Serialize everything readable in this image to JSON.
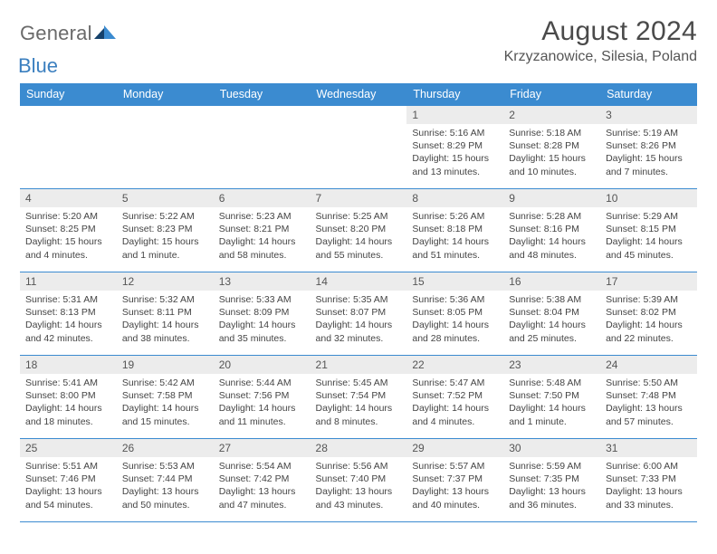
{
  "brand": {
    "general": "General",
    "blue": "Blue"
  },
  "title": "August 2024",
  "location": "Krzyzanowice, Silesia, Poland",
  "colors": {
    "header_bg": "#3b8bd0",
    "header_text": "#ffffff",
    "rule": "#3b8bd0",
    "daynum_bg": "#ececec",
    "daynum_text": "#555555",
    "body_text": "#444444",
    "logo_gray": "#6a6a6a",
    "logo_blue": "#3b7fbf",
    "triangle1": "#15416b",
    "triangle2": "#3b8bd0"
  },
  "typography": {
    "title_fontsize": 30,
    "location_fontsize": 16,
    "header_fontsize": 12.5,
    "daynum_fontsize": 12,
    "details_fontsize": 10.5
  },
  "day_labels": [
    "Sunday",
    "Monday",
    "Tuesday",
    "Wednesday",
    "Thursday",
    "Friday",
    "Saturday"
  ],
  "weeks": [
    [
      null,
      null,
      null,
      null,
      {
        "n": "1",
        "sr": "5:16 AM",
        "ss": "8:29 PM",
        "dl": "15 hours and 13 minutes."
      },
      {
        "n": "2",
        "sr": "5:18 AM",
        "ss": "8:28 PM",
        "dl": "15 hours and 10 minutes."
      },
      {
        "n": "3",
        "sr": "5:19 AM",
        "ss": "8:26 PM",
        "dl": "15 hours and 7 minutes."
      }
    ],
    [
      {
        "n": "4",
        "sr": "5:20 AM",
        "ss": "8:25 PM",
        "dl": "15 hours and 4 minutes."
      },
      {
        "n": "5",
        "sr": "5:22 AM",
        "ss": "8:23 PM",
        "dl": "15 hours and 1 minute."
      },
      {
        "n": "6",
        "sr": "5:23 AM",
        "ss": "8:21 PM",
        "dl": "14 hours and 58 minutes."
      },
      {
        "n": "7",
        "sr": "5:25 AM",
        "ss": "8:20 PM",
        "dl": "14 hours and 55 minutes."
      },
      {
        "n": "8",
        "sr": "5:26 AM",
        "ss": "8:18 PM",
        "dl": "14 hours and 51 minutes."
      },
      {
        "n": "9",
        "sr": "5:28 AM",
        "ss": "8:16 PM",
        "dl": "14 hours and 48 minutes."
      },
      {
        "n": "10",
        "sr": "5:29 AM",
        "ss": "8:15 PM",
        "dl": "14 hours and 45 minutes."
      }
    ],
    [
      {
        "n": "11",
        "sr": "5:31 AM",
        "ss": "8:13 PM",
        "dl": "14 hours and 42 minutes."
      },
      {
        "n": "12",
        "sr": "5:32 AM",
        "ss": "8:11 PM",
        "dl": "14 hours and 38 minutes."
      },
      {
        "n": "13",
        "sr": "5:33 AM",
        "ss": "8:09 PM",
        "dl": "14 hours and 35 minutes."
      },
      {
        "n": "14",
        "sr": "5:35 AM",
        "ss": "8:07 PM",
        "dl": "14 hours and 32 minutes."
      },
      {
        "n": "15",
        "sr": "5:36 AM",
        "ss": "8:05 PM",
        "dl": "14 hours and 28 minutes."
      },
      {
        "n": "16",
        "sr": "5:38 AM",
        "ss": "8:04 PM",
        "dl": "14 hours and 25 minutes."
      },
      {
        "n": "17",
        "sr": "5:39 AM",
        "ss": "8:02 PM",
        "dl": "14 hours and 22 minutes."
      }
    ],
    [
      {
        "n": "18",
        "sr": "5:41 AM",
        "ss": "8:00 PM",
        "dl": "14 hours and 18 minutes."
      },
      {
        "n": "19",
        "sr": "5:42 AM",
        "ss": "7:58 PM",
        "dl": "14 hours and 15 minutes."
      },
      {
        "n": "20",
        "sr": "5:44 AM",
        "ss": "7:56 PM",
        "dl": "14 hours and 11 minutes."
      },
      {
        "n": "21",
        "sr": "5:45 AM",
        "ss": "7:54 PM",
        "dl": "14 hours and 8 minutes."
      },
      {
        "n": "22",
        "sr": "5:47 AM",
        "ss": "7:52 PM",
        "dl": "14 hours and 4 minutes."
      },
      {
        "n": "23",
        "sr": "5:48 AM",
        "ss": "7:50 PM",
        "dl": "14 hours and 1 minute."
      },
      {
        "n": "24",
        "sr": "5:50 AM",
        "ss": "7:48 PM",
        "dl": "13 hours and 57 minutes."
      }
    ],
    [
      {
        "n": "25",
        "sr": "5:51 AM",
        "ss": "7:46 PM",
        "dl": "13 hours and 54 minutes."
      },
      {
        "n": "26",
        "sr": "5:53 AM",
        "ss": "7:44 PM",
        "dl": "13 hours and 50 minutes."
      },
      {
        "n": "27",
        "sr": "5:54 AM",
        "ss": "7:42 PM",
        "dl": "13 hours and 47 minutes."
      },
      {
        "n": "28",
        "sr": "5:56 AM",
        "ss": "7:40 PM",
        "dl": "13 hours and 43 minutes."
      },
      {
        "n": "29",
        "sr": "5:57 AM",
        "ss": "7:37 PM",
        "dl": "13 hours and 40 minutes."
      },
      {
        "n": "30",
        "sr": "5:59 AM",
        "ss": "7:35 PM",
        "dl": "13 hours and 36 minutes."
      },
      {
        "n": "31",
        "sr": "6:00 AM",
        "ss": "7:33 PM",
        "dl": "13 hours and 33 minutes."
      }
    ]
  ],
  "labels": {
    "sunrise": "Sunrise:",
    "sunset": "Sunset:",
    "daylight": "Daylight:"
  }
}
